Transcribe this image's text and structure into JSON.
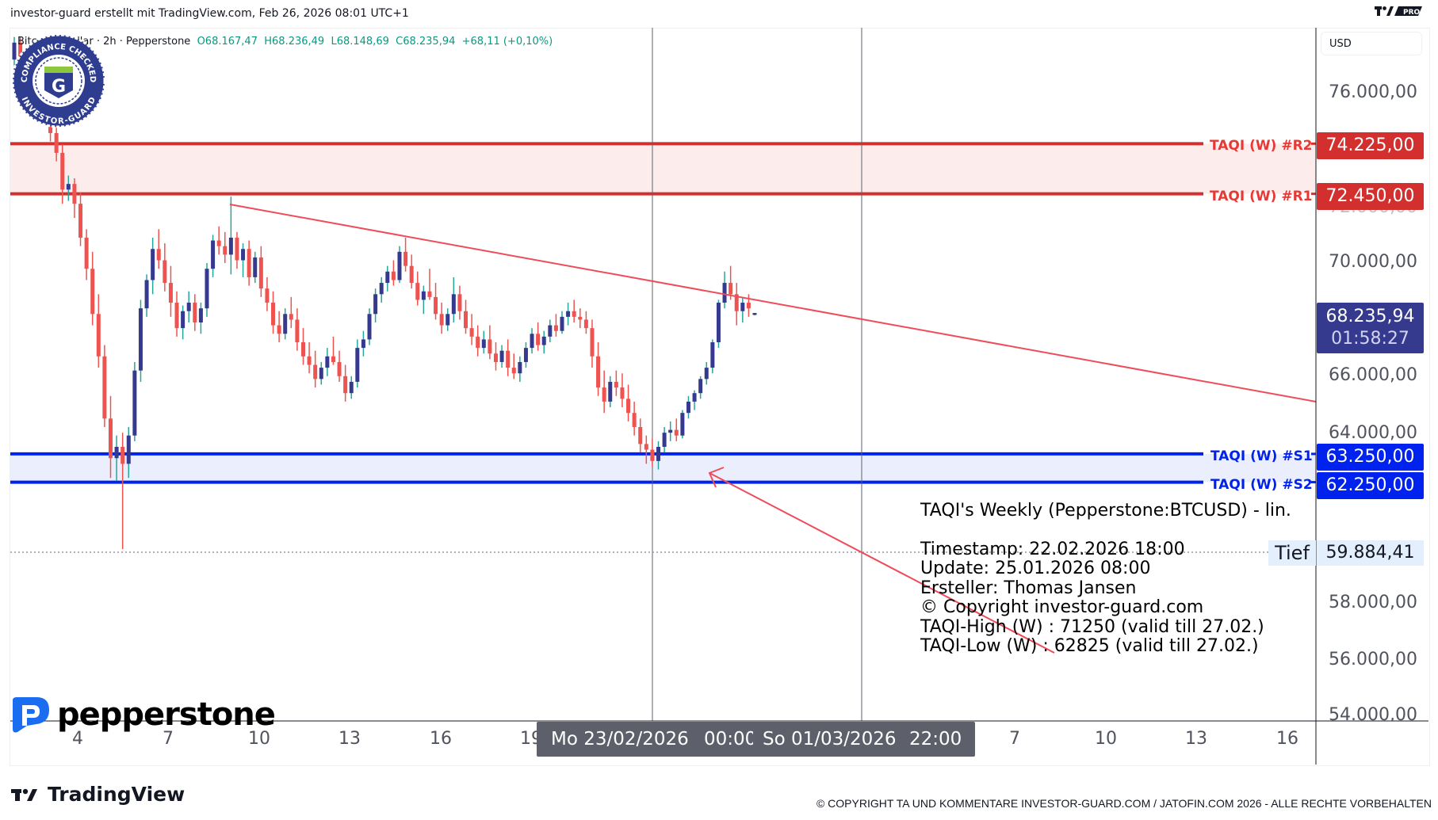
{
  "header": {
    "title": "investor-guard erstellt mit TradingView.com, Feb 26, 2026 08:01 UTC+1",
    "brand_badge": "PRO"
  },
  "legend": {
    "symbol": "Bitcoin / Dollar · 2h · Pepperstone",
    "open": "O68.167,47",
    "high": "H68.236,49",
    "low": "L68.148,69",
    "close": "C68.235,94",
    "change": "+68,11 (+0,10%)"
  },
  "price_axis": {
    "currency": "USD",
    "ticks": [
      "76.000,00",
      "72.000,00",
      "70.000,00",
      "66.000,00",
      "64.000,00",
      "58.000,00",
      "56.000,00",
      "54.000,00"
    ],
    "current_price": "68.235,94",
    "countdown": "01:58:27",
    "low_label": "Tief",
    "low_value": "59.884,41"
  },
  "levels": [
    {
      "name": "TAQI (W) #R2",
      "value": "74.225,00",
      "price": 74225,
      "color": "#d32f2f"
    },
    {
      "name": "TAQI (W) #R1",
      "value": "72.450,00",
      "price": 72450,
      "color": "#d32f2f"
    },
    {
      "name": "TAQI (W) #S1",
      "value": "63.250,00",
      "price": 63250,
      "color": "#0022ee"
    },
    {
      "name": "TAQI (W) #S2",
      "value": "62.250,00",
      "price": 62250,
      "color": "#0022ee"
    }
  ],
  "info_box": {
    "title": "TAQI's Weekly (Pepperstone:BTCUSD) - lin.",
    "lines": [
      "Timestamp: 22.02.2026 18:00",
      "Update: 25.01.2026 08:00",
      "Ersteller: Thomas Jansen",
      "© Copyright investor-guard.com",
      "TAQI-High (W) : 71250 (valid till 27.02.)",
      "TAQI-Low (W) : 62825 (valid till 27.02.)"
    ]
  },
  "time_axis": {
    "ticks": [
      "4",
      "7",
      "10",
      "13",
      "16",
      "19",
      "7",
      "10",
      "13",
      "16"
    ],
    "range_start": "Mo 23/02/2026",
    "range_start_time": "00:00",
    "range_end": "So 01/03/2026",
    "range_end_time": "22:00"
  },
  "watermark": {
    "badge_top": "COMPLIANCE CHECKED",
    "badge_bottom": "INVESTOR-GUARD",
    "badge_letter": "G",
    "broker_logo": "pepperstone"
  },
  "footer": {
    "tradingview": "TradingView",
    "copyright": "© COPYRIGHT TA UND KOMMENTARE INVESTOR-GUARD.COM / JATOFIN.COM 2026 - ALLE RECHTE VORBEHALTEN"
  },
  "colors": {
    "up": "#363a8f",
    "up_wick": "#26a69a",
    "down": "#ef5350",
    "resistance": "#d32f2f",
    "resistance_zone": "#fdecec",
    "support": "#0022ee",
    "support_zone": "#eaeefd",
    "trendline": "#ef4c5a",
    "last_price_bg": "#363a8f"
  },
  "chart_data": {
    "type": "candlestick",
    "title": "Bitcoin / Dollar · 2h · Pepperstone",
    "xlabel": "",
    "ylabel": "USD",
    "ylim": [
      53800,
      78000
    ],
    "x_ticks": [
      "4",
      "7",
      "10",
      "13",
      "16",
      "19",
      "23/02",
      "01/03",
      "7",
      "10",
      "13",
      "16"
    ],
    "horizontal_levels": [
      {
        "label": "TAQI (W) #R2",
        "value": 74225
      },
      {
        "label": "TAQI (W) #R1",
        "value": 72450
      },
      {
        "label": "TAQI (W) #S1",
        "value": 63250
      },
      {
        "label": "TAQI (W) #S2",
        "value": 62250
      },
      {
        "label": "Tief",
        "value": 59884.41
      }
    ],
    "trendline": {
      "from": {
        "x": "2026-02-08",
        "price": 72350
      },
      "to": {
        "x": "2026-03-19",
        "price": 65300
      }
    },
    "annotations": [
      "Arrow from info box pointing to low near 62.800 on 24/02",
      "Vertical markers at Mo 23/02/2026 00:00 and So 01/03/2026 22:00"
    ],
    "last": {
      "open": 68167.47,
      "high": 68236.49,
      "low": 68148.69,
      "close": 68235.94,
      "change": 68.11,
      "change_pct": 0.1
    },
    "candles_ohlc": [
      [
        77200,
        78000,
        76600,
        77800
      ],
      [
        77800,
        78000,
        76900,
        77100
      ],
      [
        77100,
        77500,
        76000,
        76400
      ],
      [
        76400,
        77300,
        76100,
        77000
      ],
      [
        77000,
        77400,
        75000,
        75400
      ],
      [
        75400,
        76200,
        75000,
        75900
      ],
      [
        75900,
        76600,
        74300,
        74600
      ],
      [
        74600,
        75100,
        73600,
        73900
      ],
      [
        73900,
        74200,
        72100,
        72600
      ],
      [
        72600,
        73100,
        72200,
        72800
      ],
      [
        72800,
        73000,
        71600,
        72100
      ],
      [
        72100,
        72500,
        70600,
        70900
      ],
      [
        70900,
        71200,
        69400,
        69800
      ],
      [
        69800,
        70400,
        67800,
        68200
      ],
      [
        68200,
        68900,
        66300,
        66700
      ],
      [
        66700,
        67100,
        64200,
        64500
      ],
      [
        64500,
        65300,
        62400,
        63100
      ],
      [
        63100,
        63900,
        62300,
        63500
      ],
      [
        63500,
        64000,
        59884,
        62900
      ],
      [
        62900,
        64200,
        62400,
        63900
      ],
      [
        63900,
        66500,
        63700,
        66200
      ],
      [
        66200,
        68700,
        65800,
        68400
      ],
      [
        68400,
        69600,
        68100,
        69400
      ],
      [
        69400,
        70900,
        68900,
        70500
      ],
      [
        70500,
        71200,
        69800,
        70100
      ],
      [
        70100,
        70700,
        69000,
        69300
      ],
      [
        69300,
        69900,
        68100,
        68600
      ],
      [
        68600,
        69000,
        67400,
        67700
      ],
      [
        67700,
        68500,
        67300,
        68300
      ],
      [
        68300,
        69000,
        67900,
        68600
      ],
      [
        68600,
        68900,
        67600,
        67900
      ],
      [
        67900,
        68600,
        67500,
        68400
      ],
      [
        68400,
        70000,
        68100,
        69800
      ],
      [
        69800,
        71000,
        69500,
        70800
      ],
      [
        70800,
        71300,
        70300,
        70600
      ],
      [
        70600,
        71100,
        70000,
        70300
      ],
      [
        70300,
        72350,
        69600,
        70900
      ],
      [
        70900,
        71100,
        69800,
        70100
      ],
      [
        70100,
        70700,
        69500,
        70500
      ],
      [
        70500,
        70800,
        69200,
        69500
      ],
      [
        69500,
        70400,
        69300,
        70200
      ],
      [
        70200,
        70600,
        68800,
        69100
      ],
      [
        69100,
        69500,
        68300,
        68600
      ],
      [
        68600,
        69000,
        67500,
        67800
      ],
      [
        67800,
        68300,
        67200,
        67500
      ],
      [
        67500,
        68400,
        67300,
        68200
      ],
      [
        68200,
        68800,
        67700,
        68000
      ],
      [
        68000,
        68400,
        66900,
        67200
      ],
      [
        67200,
        67700,
        66400,
        66700
      ],
      [
        66700,
        67200,
        66100,
        66400
      ],
      [
        66400,
        66900,
        65600,
        65900
      ],
      [
        65900,
        66500,
        65700,
        66300
      ],
      [
        66300,
        67000,
        66000,
        66700
      ],
      [
        66700,
        67400,
        66400,
        66500
      ],
      [
        66500,
        66900,
        65800,
        66000
      ],
      [
        66000,
        66400,
        65100,
        65400
      ],
      [
        65400,
        66000,
        65200,
        65800
      ],
      [
        65800,
        67300,
        65600,
        67000
      ],
      [
        67000,
        67600,
        66700,
        67300
      ],
      [
        67300,
        68400,
        67100,
        68200
      ],
      [
        68200,
        69100,
        67900,
        68900
      ],
      [
        68900,
        69500,
        68600,
        69300
      ],
      [
        69300,
        69900,
        69000,
        69700
      ],
      [
        69700,
        70100,
        69200,
        69400
      ],
      [
        69400,
        70600,
        69300,
        70400
      ],
      [
        70400,
        70900,
        69700,
        69900
      ],
      [
        69900,
        70300,
        69100,
        69300
      ],
      [
        69300,
        69700,
        68500,
        68700
      ],
      [
        68700,
        69200,
        68200,
        69000
      ],
      [
        69000,
        69800,
        68700,
        68800
      ],
      [
        68800,
        69300,
        68000,
        68200
      ],
      [
        68200,
        68600,
        67500,
        67800
      ],
      [
        67800,
        68400,
        67600,
        68200
      ],
      [
        68200,
        69500,
        67900,
        68900
      ],
      [
        68900,
        69200,
        68000,
        68300
      ],
      [
        68300,
        68700,
        67500,
        67700
      ],
      [
        67700,
        68200,
        67100,
        67400
      ],
      [
        67400,
        67800,
        66700,
        67000
      ],
      [
        67000,
        67600,
        66800,
        67300
      ],
      [
        67300,
        67800,
        66600,
        66800
      ],
      [
        66800,
        67200,
        66200,
        66500
      ],
      [
        66500,
        67100,
        66300,
        66900
      ],
      [
        66900,
        67300,
        66000,
        66300
      ],
      [
        66300,
        66800,
        65900,
        66100
      ],
      [
        66100,
        66700,
        65800,
        66500
      ],
      [
        66500,
        67200,
        66300,
        67000
      ],
      [
        67000,
        67700,
        66800,
        67500
      ],
      [
        67500,
        67900,
        66900,
        67100
      ],
      [
        67100,
        67600,
        66800,
        67400
      ],
      [
        67400,
        68000,
        67200,
        67800
      ],
      [
        67800,
        68200,
        67400,
        67600
      ],
      [
        67600,
        68300,
        67500,
        68100
      ],
      [
        68100,
        68600,
        67800,
        68300
      ],
      [
        68300,
        68700,
        67900,
        68100
      ],
      [
        68100,
        68400,
        67700,
        68000
      ],
      [
        68000,
        68300,
        67500,
        67700
      ],
      [
        67700,
        68000,
        66300,
        66700
      ],
      [
        66700,
        67200,
        65300,
        65600
      ],
      [
        65600,
        66200,
        64700,
        65100
      ],
      [
        65100,
        66000,
        64900,
        65800
      ],
      [
        65800,
        66200,
        65300,
        65600
      ],
      [
        65600,
        66100,
        64900,
        65200
      ],
      [
        65200,
        65700,
        64400,
        64700
      ],
      [
        64700,
        65100,
        63900,
        64200
      ],
      [
        64200,
        64500,
        63300,
        63600
      ],
      [
        63600,
        63900,
        62900,
        63400
      ],
      [
        63400,
        63800,
        62800,
        63000
      ],
      [
        63000,
        63700,
        62700,
        63500
      ],
      [
        63500,
        64200,
        63300,
        64000
      ],
      [
        64000,
        64400,
        63700,
        64100
      ],
      [
        64100,
        64500,
        63700,
        63900
      ],
      [
        63900,
        64800,
        63800,
        64700
      ],
      [
        64700,
        65300,
        64500,
        65100
      ],
      [
        65100,
        65500,
        64800,
        65400
      ],
      [
        65400,
        66000,
        65200,
        65900
      ],
      [
        65900,
        66500,
        65700,
        66300
      ],
      [
        66300,
        67300,
        66100,
        67200
      ],
      [
        67200,
        68700,
        67000,
        68600
      ],
      [
        68600,
        69700,
        68400,
        69300
      ],
      [
        69300,
        69900,
        68700,
        68900
      ],
      [
        68900,
        69300,
        67800,
        68300
      ],
      [
        68300,
        68800,
        67900,
        68600
      ],
      [
        68600,
        68900,
        68100,
        68400
      ],
      [
        68167.47,
        68236.49,
        68148.69,
        68235.94
      ]
    ]
  }
}
